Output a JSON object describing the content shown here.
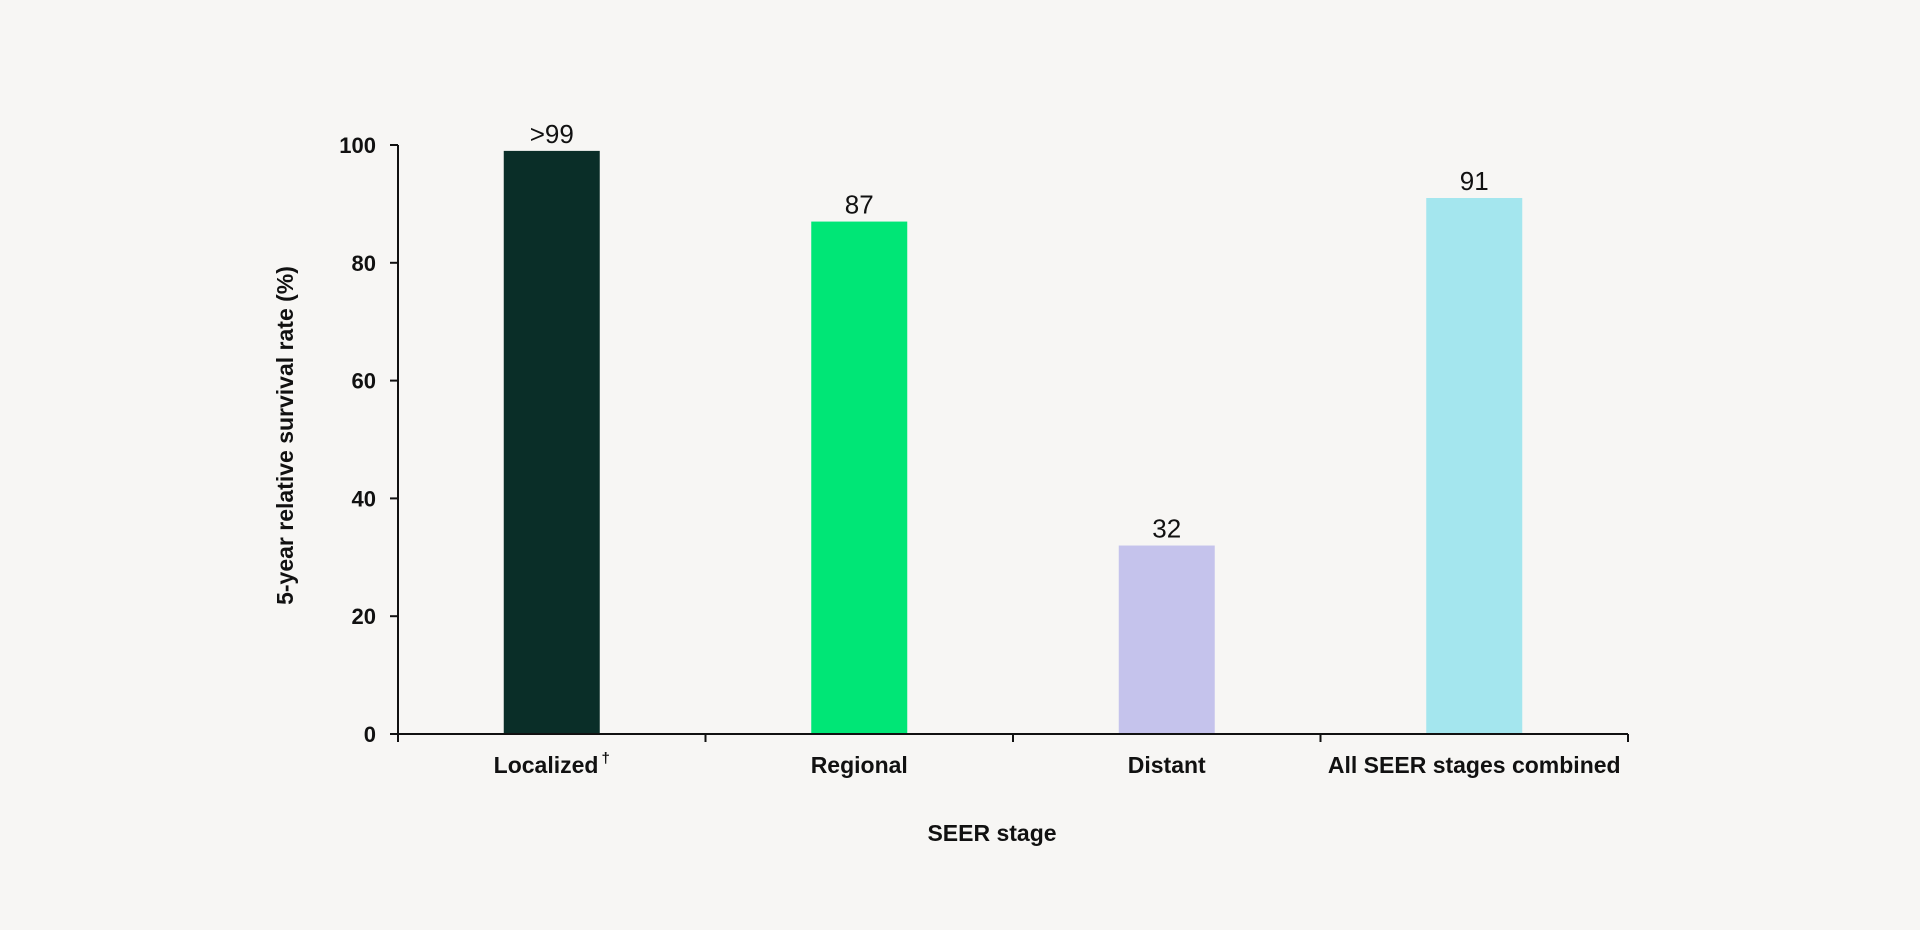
{
  "chart_data": {
    "type": "bar",
    "categories": [
      "Localized",
      "Regional",
      "Distant",
      "All SEER stages combined"
    ],
    "category_markers": [
      "†",
      "",
      "",
      ""
    ],
    "values": [
      99,
      87,
      32,
      91
    ],
    "data_labels": [
      ">99",
      "87",
      "32",
      "91"
    ],
    "colors": [
      "#0a2e28",
      "#00e676",
      "#c5c3ec",
      "#a4e6ee"
    ],
    "title": "",
    "xlabel": "SEER stage",
    "ylabel": "5-year relative survival rate (%)",
    "ylim": [
      0,
      100
    ],
    "yticks": [
      0,
      20,
      40,
      60,
      80,
      100
    ],
    "grid": false,
    "legend": "none"
  }
}
